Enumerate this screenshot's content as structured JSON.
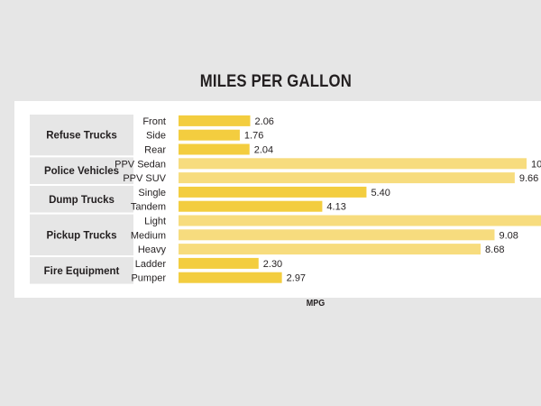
{
  "chart_data": {
    "type": "bar",
    "orientation": "horizontal",
    "title": "MILES PER GALLON",
    "xlabel": "MPG",
    "ylabel": "",
    "xlim": [
      0,
      10.5
    ],
    "grid": false,
    "legend": "none",
    "groups": [
      {
        "name": "Refuse Trucks",
        "items": [
          {
            "label": "Front",
            "value": 2.06,
            "value_label": "2.06"
          },
          {
            "label": "Side",
            "value": 1.76,
            "value_label": "1.76"
          },
          {
            "label": "Rear",
            "value": 2.04,
            "value_label": "2.04"
          }
        ]
      },
      {
        "name": "Police Vehicles",
        "items": [
          {
            "label": "PPV Sedan",
            "value": 10.0,
            "value_label": "10"
          },
          {
            "label": "PPV SUV",
            "value": 9.66,
            "value_label": "9.66"
          }
        ]
      },
      {
        "name": "Dump Trucks",
        "items": [
          {
            "label": "Single",
            "value": 5.4,
            "value_label": "5.40"
          },
          {
            "label": "Tandem",
            "value": 4.13,
            "value_label": "4.13"
          }
        ]
      },
      {
        "name": "Pickup Trucks",
        "items": [
          {
            "label": "Light",
            "value": 10.5,
            "value_label": ""
          },
          {
            "label": "Medium",
            "value": 9.08,
            "value_label": "9.08"
          },
          {
            "label": "Heavy",
            "value": 8.68,
            "value_label": "8.68"
          }
        ]
      },
      {
        "name": "Fire Equipment",
        "items": [
          {
            "label": "Ladder",
            "value": 2.3,
            "value_label": "2.30"
          },
          {
            "label": "Pumper",
            "value": 2.97,
            "value_label": "2.97"
          }
        ]
      }
    ],
    "colors": {
      "bar": "#f3cd3f",
      "bar_alt": "#f7dc7e",
      "group_box": "#e6e6e6",
      "text": "#231f20"
    }
  }
}
